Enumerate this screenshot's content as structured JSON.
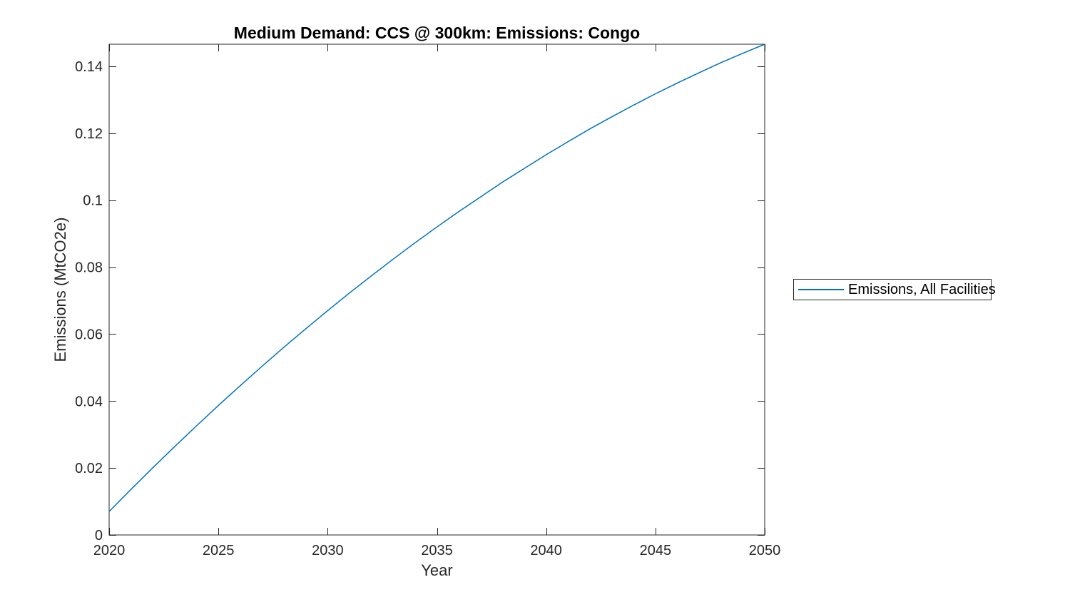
{
  "figure": {
    "title": "Medium Demand: CCS @ 300km: Emissions: Congo",
    "xlabel": "Year",
    "ylabel": "Emissions (MtCO2e)",
    "background_color": "#ffffff"
  },
  "legend": {
    "label": "Emissions, All Facilities",
    "position": "outside-right"
  },
  "chart_data": {
    "type": "line",
    "title": "Medium Demand: CCS @ 300km: Emissions: Congo",
    "xlabel": "Year",
    "ylabel": "Emissions (MtCO2e)",
    "x": [
      2020,
      2021,
      2022,
      2023,
      2024,
      2025,
      2026,
      2027,
      2028,
      2029,
      2030,
      2031,
      2032,
      2033,
      2034,
      2035,
      2036,
      2037,
      2038,
      2039,
      2040,
      2041,
      2042,
      2043,
      2044,
      2045,
      2046,
      2047,
      2048,
      2049,
      2050
    ],
    "series": [
      {
        "name": "Emissions, All Facilities",
        "color": "#0072BD",
        "values": [
          0.007,
          0.0136,
          0.0201,
          0.0264,
          0.0326,
          0.0387,
          0.0446,
          0.0504,
          0.0561,
          0.0616,
          0.067,
          0.0723,
          0.0774,
          0.0824,
          0.0873,
          0.092,
          0.0966,
          0.101,
          0.1054,
          0.1095,
          0.1136,
          0.1175,
          0.1213,
          0.1249,
          0.1284,
          0.1318,
          0.135,
          0.1381,
          0.1411,
          0.1439,
          0.1466
        ]
      }
    ],
    "xlim": [
      2020,
      2050
    ],
    "ylim": [
      0,
      0.1466
    ],
    "xticks": [
      2020,
      2025,
      2030,
      2035,
      2040,
      2045,
      2050
    ],
    "yticks": [
      0,
      0.02,
      0.04,
      0.06,
      0.08,
      0.1,
      0.12,
      0.14
    ],
    "ytick_labels": [
      "0",
      "0.02",
      "0.04",
      "0.06",
      "0.08",
      "0.1",
      "0.12",
      "0.14"
    ],
    "grid": false,
    "box": true,
    "tick_direction": "in",
    "axis_color": "#262626",
    "line_color": "#0072BD",
    "legend_position": "outside-right"
  }
}
